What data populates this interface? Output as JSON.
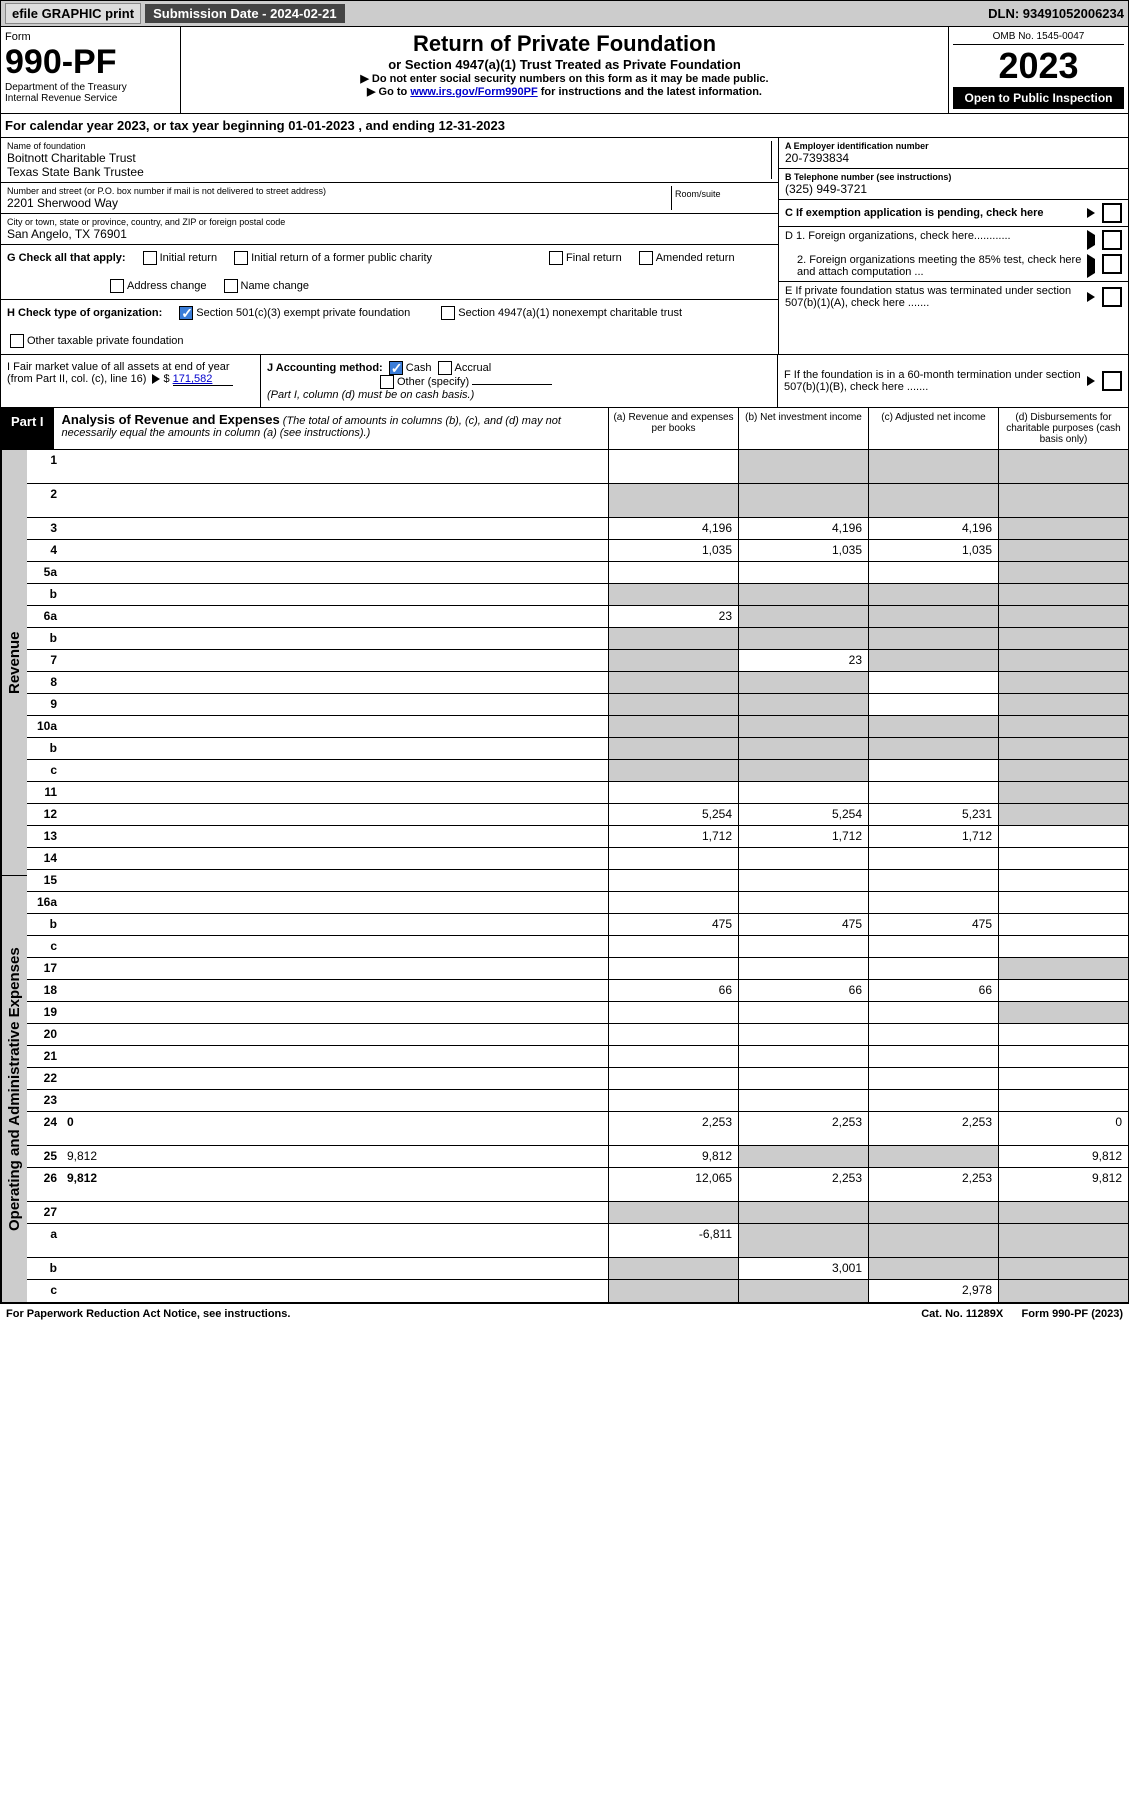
{
  "topbar": {
    "efile": "efile GRAPHIC print",
    "sub_label": "Submission Date - 2024-02-21",
    "dln": "DLN: 93491052006234"
  },
  "header": {
    "form_word": "Form",
    "form_no": "990-PF",
    "dept": "Department of the Treasury",
    "irs": "Internal Revenue Service",
    "title": "Return of Private Foundation",
    "sub1": "or Section 4947(a)(1) Trust Treated as Private Foundation",
    "sub2a": "▶ Do not enter social security numbers on this form as it may be made public.",
    "sub2b": "▶ Go to ",
    "link": "www.irs.gov/Form990PF",
    "sub2c": " for instructions and the latest information.",
    "omb": "OMB No. 1545-0047",
    "year": "2023",
    "open": "Open to Public Inspection"
  },
  "calyear": "For calendar year 2023, or tax year beginning 01-01-2023                          , and ending 12-31-2023",
  "info": {
    "name_lbl": "Name of foundation",
    "name1": "Boitnott Charitable Trust",
    "name2": "Texas State Bank Trustee",
    "ein_lbl": "A Employer identification number",
    "ein": "20-7393834",
    "addr_lbl": "Number and street (or P.O. box number if mail is not delivered to street address)",
    "room_lbl": "Room/suite",
    "addr": "2201 Sherwood Way",
    "phone_lbl": "B Telephone number (see instructions)",
    "phone": "(325) 949-3721",
    "city_lbl": "City or town, state or province, country, and ZIP or foreign postal code",
    "city": "San Angelo, TX  76901",
    "pending": "C If exemption application is pending, check here",
    "g_lbl": "G Check all that apply:",
    "g_opts": [
      "Initial return",
      "Initial return of a former public charity",
      "Final return",
      "Amended return",
      "Address change",
      "Name change"
    ],
    "d1": "D 1. Foreign organizations, check here............",
    "d2": "2. Foreign organizations meeting the 85% test, check here and attach computation ...",
    "h_lbl": "H Check type of organization:",
    "h1": "Section 501(c)(3) exempt private foundation",
    "h2": "Section 4947(a)(1) nonexempt charitable trust",
    "h3": "Other taxable private foundation",
    "e_txt": "E  If private foundation status was terminated under section 507(b)(1)(A), check here .......",
    "i_lbl": "I Fair market value of all assets at end of year (from Part II, col. (c), line 16)",
    "i_val": "171,582",
    "j_lbl": "J Accounting method:",
    "j_cash": "Cash",
    "j_accr": "Accrual",
    "j_other": "Other (specify)",
    "j_note": "(Part I, column (d) must be on cash basis.)",
    "f_txt": "F  If the foundation is in a 60-month termination under section 507(b)(1)(B), check here ......."
  },
  "part1": {
    "label": "Part I",
    "title": "Analysis of Revenue and Expenses",
    "note": " (The total of amounts in columns (b), (c), and (d) may not necessarily equal the amounts in column (a) (see instructions).)",
    "col_a": "(a)   Revenue and expenses per books",
    "col_b": "(b)   Net investment income",
    "col_c": "(c)   Adjusted net income",
    "col_d": "(d)  Disbursements for charitable purposes (cash basis only)"
  },
  "sidebar": {
    "rev": "Revenue",
    "exp": "Operating and Administrative Expenses"
  },
  "rows": [
    {
      "n": "1",
      "d": "",
      "a": "",
      "b": "",
      "c": "",
      "gb": true,
      "gc": true,
      "gd": true,
      "tall": true
    },
    {
      "n": "2",
      "d": "",
      "a": "",
      "b": "",
      "c": "",
      "ga": true,
      "gb": true,
      "gc": true,
      "gd": true,
      "tall": true
    },
    {
      "n": "3",
      "d": "",
      "a": "4,196",
      "b": "4,196",
      "c": "4,196",
      "gd": true
    },
    {
      "n": "4",
      "d": "",
      "a": "1,035",
      "b": "1,035",
      "c": "1,035",
      "gd": true
    },
    {
      "n": "5a",
      "d": "",
      "a": "",
      "b": "",
      "c": "",
      "gd": true
    },
    {
      "n": "b",
      "d": "",
      "a": "",
      "b": "",
      "c": "",
      "ga": true,
      "gb": true,
      "gc": true,
      "gd": true
    },
    {
      "n": "6a",
      "d": "",
      "a": "23",
      "b": "",
      "c": "",
      "gb": true,
      "gc": true,
      "gd": true
    },
    {
      "n": "b",
      "d": "",
      "a": "",
      "b": "",
      "c": "",
      "ga": true,
      "gb": true,
      "gc": true,
      "gd": true
    },
    {
      "n": "7",
      "d": "",
      "a": "",
      "b": "23",
      "c": "",
      "ga": true,
      "gc": true,
      "gd": true
    },
    {
      "n": "8",
      "d": "",
      "a": "",
      "b": "",
      "c": "",
      "ga": true,
      "gb": true,
      "gd": true
    },
    {
      "n": "9",
      "d": "",
      "a": "",
      "b": "",
      "c": "",
      "ga": true,
      "gb": true,
      "gd": true
    },
    {
      "n": "10a",
      "d": "",
      "a": "",
      "b": "",
      "c": "",
      "ga": true,
      "gb": true,
      "gc": true,
      "gd": true
    },
    {
      "n": "b",
      "d": "",
      "a": "",
      "b": "",
      "c": "",
      "ga": true,
      "gb": true,
      "gc": true,
      "gd": true
    },
    {
      "n": "c",
      "d": "",
      "a": "",
      "b": "",
      "c": "",
      "ga": true,
      "gb": true,
      "gd": true
    },
    {
      "n": "11",
      "d": "",
      "a": "",
      "b": "",
      "c": "",
      "gd": true
    },
    {
      "n": "12",
      "d": "",
      "a": "5,254",
      "b": "5,254",
      "c": "5,231",
      "bold": true,
      "gd": true
    },
    {
      "n": "13",
      "d": "",
      "a": "1,712",
      "b": "1,712",
      "c": "1,712"
    },
    {
      "n": "14",
      "d": "",
      "a": "",
      "b": "",
      "c": ""
    },
    {
      "n": "15",
      "d": "",
      "a": "",
      "b": "",
      "c": ""
    },
    {
      "n": "16a",
      "d": "",
      "a": "",
      "b": "",
      "c": ""
    },
    {
      "n": "b",
      "d": "",
      "a": "475",
      "b": "475",
      "c": "475"
    },
    {
      "n": "c",
      "d": "",
      "a": "",
      "b": "",
      "c": ""
    },
    {
      "n": "17",
      "d": "",
      "a": "",
      "b": "",
      "c": "",
      "gd": true
    },
    {
      "n": "18",
      "d": "",
      "a": "66",
      "b": "66",
      "c": "66"
    },
    {
      "n": "19",
      "d": "",
      "a": "",
      "b": "",
      "c": "",
      "gd": true
    },
    {
      "n": "20",
      "d": "",
      "a": "",
      "b": "",
      "c": ""
    },
    {
      "n": "21",
      "d": "",
      "a": "",
      "b": "",
      "c": ""
    },
    {
      "n": "22",
      "d": "",
      "a": "",
      "b": "",
      "c": ""
    },
    {
      "n": "23",
      "d": "",
      "a": "",
      "b": "",
      "c": ""
    },
    {
      "n": "24",
      "d": "0",
      "a": "2,253",
      "b": "2,253",
      "c": "2,253",
      "bold": true,
      "tall": true
    },
    {
      "n": "25",
      "d": "9,812",
      "a": "9,812",
      "b": "",
      "c": "",
      "gb": true,
      "gc": true
    },
    {
      "n": "26",
      "d": "9,812",
      "a": "12,065",
      "b": "2,253",
      "c": "2,253",
      "bold": true,
      "tall": true
    },
    {
      "n": "27",
      "d": "",
      "a": "",
      "b": "",
      "c": "",
      "ga": true,
      "gb": true,
      "gc": true,
      "gd": true
    },
    {
      "n": "a",
      "d": "",
      "a": "-6,811",
      "b": "",
      "c": "",
      "bold": true,
      "gb": true,
      "gc": true,
      "gd": true,
      "tall": true
    },
    {
      "n": "b",
      "d": "",
      "a": "",
      "b": "3,001",
      "c": "",
      "bold": true,
      "ga": true,
      "gc": true,
      "gd": true
    },
    {
      "n": "c",
      "d": "",
      "a": "",
      "b": "",
      "c": "2,978",
      "bold": true,
      "ga": true,
      "gb": true,
      "gd": true
    }
  ],
  "footer": {
    "left": "For Paperwork Reduction Act Notice, see instructions.",
    "mid": "Cat. No. 11289X",
    "right": "Form 990-PF (2023)"
  }
}
